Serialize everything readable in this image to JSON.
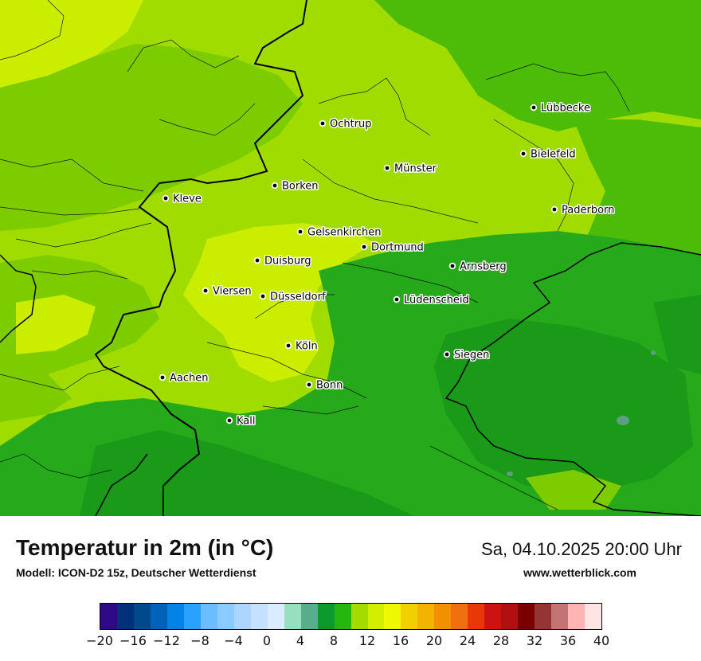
{
  "header": {
    "title": "Temperatur in 2m (in °C)",
    "subtitle": "Modell: ICON-D2 15z, Deutscher Wetterdienst",
    "datetime": "Sa, 04.10.2025 20:00 Uhr",
    "website": "www.wetterblick.com"
  },
  "map": {
    "cities": [
      {
        "name": "Lübbecke"
      },
      {
        "name": "Ochtrup"
      },
      {
        "name": "Bielefeld"
      },
      {
        "name": "Münster"
      },
      {
        "name": "Kleve"
      },
      {
        "name": "Borken"
      },
      {
        "name": "Paderborn"
      },
      {
        "name": "Gelsenkirchen"
      },
      {
        "name": "Dortmund"
      },
      {
        "name": "Duisburg"
      },
      {
        "name": "Arnsberg"
      },
      {
        "name": "Viersen"
      },
      {
        "name": "Düsseldorf"
      },
      {
        "name": "Lüdenscheid"
      },
      {
        "name": "Köln"
      },
      {
        "name": "Siegen"
      },
      {
        "name": "Aachen"
      },
      {
        "name": "Bonn"
      },
      {
        "name": "Kall"
      }
    ]
  },
  "legend": {
    "ticks": [
      "−20",
      "−16",
      "−12",
      "−8",
      "−4",
      "0",
      "4",
      "8",
      "12",
      "16",
      "20",
      "24",
      "28",
      "32",
      "36",
      "40"
    ],
    "colors": [
      "#2e0a86",
      "#00307a",
      "#004a8c",
      "#0062b8",
      "#0482e6",
      "#2aa0ff",
      "#6cbdff",
      "#8ccbff",
      "#acd6ff",
      "#c4e2ff",
      "#daecff",
      "#96e0c0",
      "#58ad8a",
      "#0c9a2e",
      "#27b60e",
      "#a4dc00",
      "#d4ee00",
      "#f0f800",
      "#f0d000",
      "#f2b400",
      "#f29000",
      "#f07010",
      "#e83808",
      "#cc1212",
      "#b01010",
      "#7a0000",
      "#943434",
      "#c47474",
      "#ffb4b4",
      "#ffe4e4"
    ]
  },
  "colors": {
    "band_yellow_green": "#cbee00",
    "band_light_green": "#a2e000",
    "band_green": "#76cc00",
    "band_mid_green": "#3eb40e",
    "band_dark_green": "#1a9e18",
    "band_teal": "#5f9e82"
  }
}
